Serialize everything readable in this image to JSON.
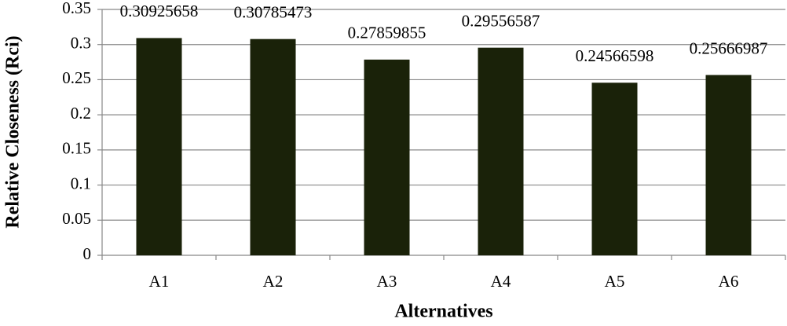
{
  "chart_data": {
    "type": "bar",
    "x_label": "Alternatives",
    "y_label": "Relative Closeness (Rci)",
    "categories": [
      "A1",
      "A2",
      "A3",
      "A4",
      "A5",
      "A6"
    ],
    "values": [
      0.30925658,
      0.30785473,
      0.27859855,
      0.29556587,
      0.24566598,
      0.25666987
    ],
    "color": "#1a2209",
    "ylim": [
      0,
      0.35
    ],
    "yticks": [
      0,
      0.05,
      0.1,
      0.15,
      0.2,
      0.25,
      0.3,
      0.35
    ],
    "grid": true
  }
}
